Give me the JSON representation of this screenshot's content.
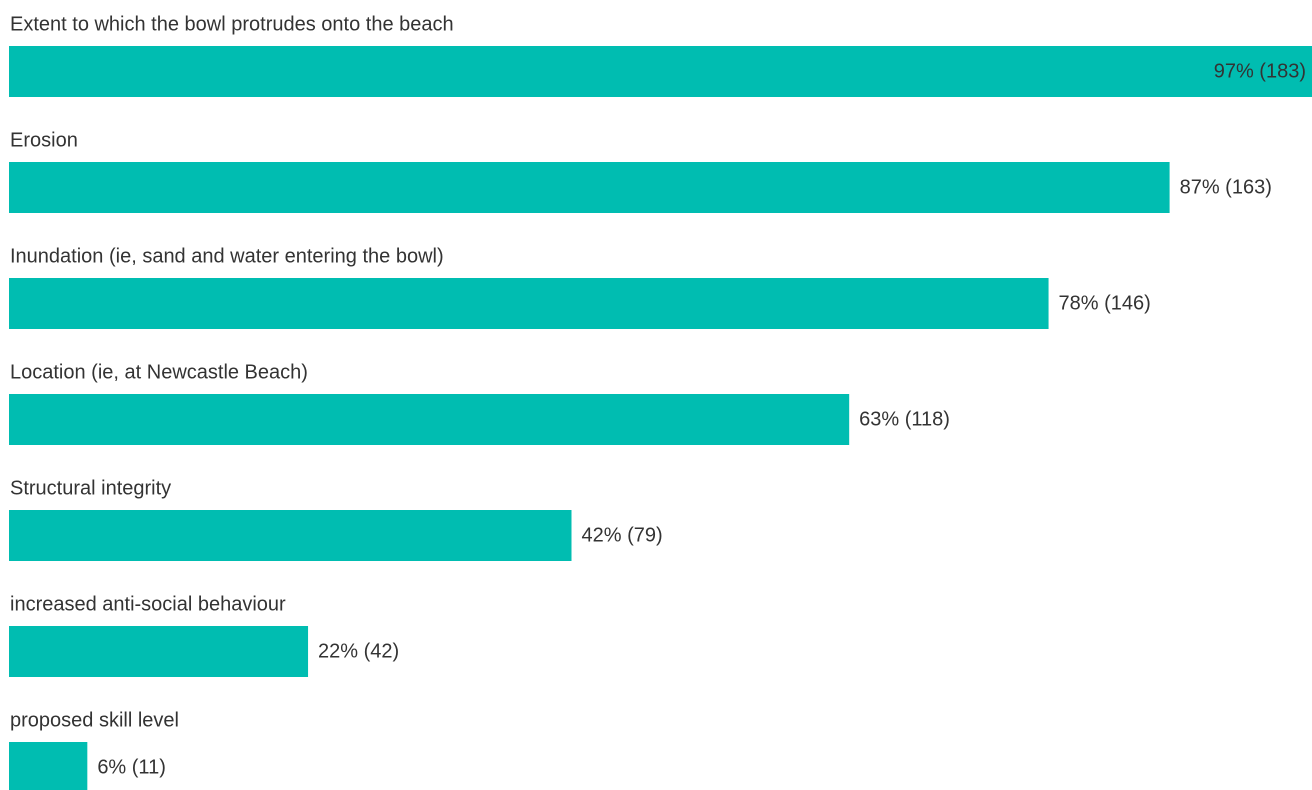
{
  "chart_data": {
    "type": "bar",
    "orientation": "horizontal",
    "categories": [
      "Extent to which the bowl protrudes onto the beach",
      "Erosion",
      "Inundation (ie, sand and water entering the bowl)",
      "Location (ie, at Newcastle Beach)",
      "Structural integrity",
      "increased anti-social behaviour",
      "proposed skill level"
    ],
    "values": [
      183,
      163,
      146,
      118,
      79,
      42,
      11
    ],
    "value_labels": [
      "97% (183)",
      "87% (163)",
      "78% (146)",
      "63% (118)",
      "42% (79)",
      "22% (42)",
      "6% (11)"
    ],
    "color": "#00bdb1"
  }
}
